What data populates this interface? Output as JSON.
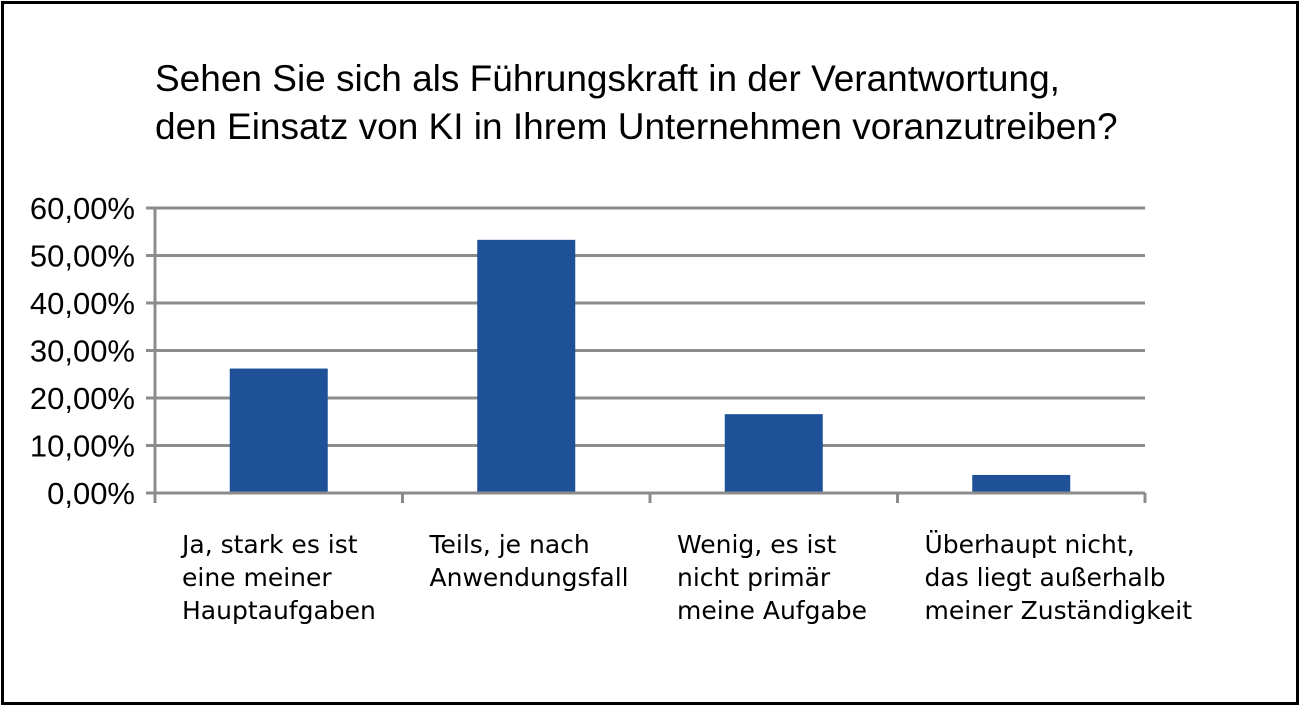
{
  "chart_data": {
    "type": "bar",
    "title": "Sehen Sie sich als Führungskraft in der Verantwortung,\nden Einsatz von KI in Ihrem Unternehmen voranzutreiben?",
    "categories": [
      "Ja, stark es ist\neine meiner\nHauptaufgaben",
      "Teils, je nach\nAnwendungsfall",
      "Wenig, es ist\nnicht primär\nmeine Aufgabe",
      "Überhaupt nicht,\ndas liegt außerhalb\nmeiner Zuständigkeit"
    ],
    "values": [
      26.2,
      53.3,
      16.6,
      3.8
    ],
    "ylim": [
      0,
      60
    ],
    "yticks": [
      "0,00%",
      "10,00%",
      "20,00%",
      "30,00%",
      "40,00%",
      "50,00%",
      "60,00%"
    ],
    "xlabel": "",
    "ylabel": "",
    "grid": true,
    "bar_color": "#1f5199",
    "grid_color": "#8c8c8c"
  }
}
